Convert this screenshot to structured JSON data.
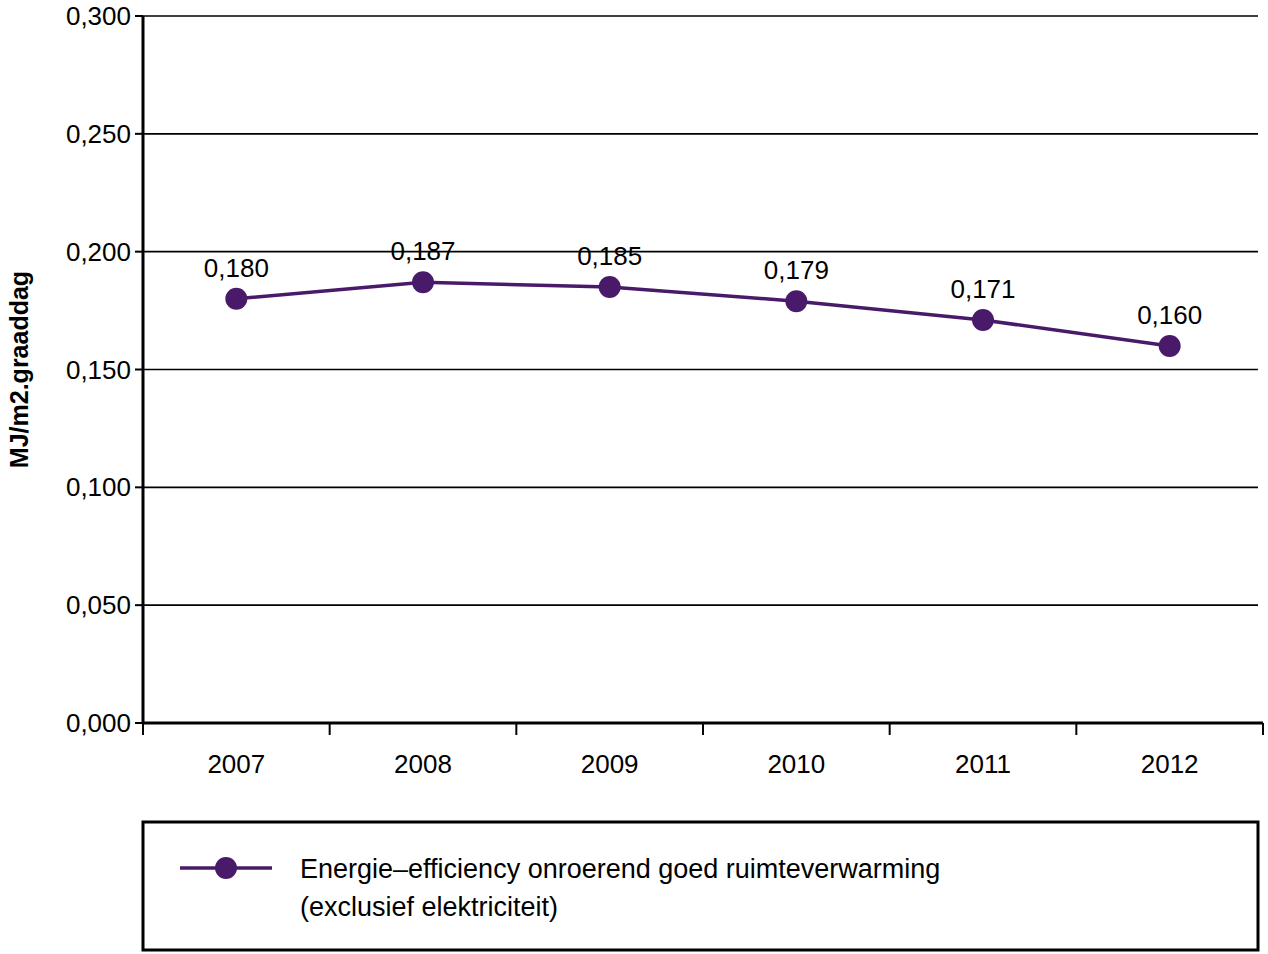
{
  "chart_data": {
    "type": "line",
    "y_label": "MJ/m2.graaddag",
    "categories": [
      "2007",
      "2008",
      "2009",
      "2010",
      "2011",
      "2012"
    ],
    "series": [
      {
        "name": "Energie–efficiency onroerend goed ruimteverwarming\n(exclusief elektriciteit)",
        "color": "#4a1a6a",
        "marker": "circle",
        "line_style": "solid",
        "values": [
          0.18,
          0.187,
          0.185,
          0.179,
          0.171,
          0.16
        ],
        "value_labels": [
          "0,180",
          "0,187",
          "0,185",
          "0,179",
          "0,171",
          "0,160"
        ]
      }
    ],
    "ylim": [
      0,
      0.3
    ],
    "yticks": [
      {
        "value": 0,
        "label": "0,000"
      },
      {
        "value": 0.05,
        "label": "0,050"
      },
      {
        "value": 0.1,
        "label": "0,100"
      },
      {
        "value": 0.15,
        "label": "0,150"
      },
      {
        "value": 0.2,
        "label": "0,200"
      },
      {
        "value": 0.25,
        "label": "0,250"
      },
      {
        "value": 0.3,
        "label": "0,300"
      }
    ],
    "grid": true,
    "data_labels": true,
    "legend": "bottom"
  }
}
